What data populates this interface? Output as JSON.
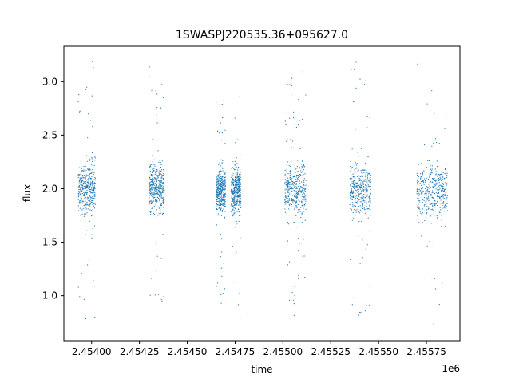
{
  "chart_data": {
    "type": "scatter",
    "title": "1SWASPJ220535.36+095627.0",
    "xlabel": "time",
    "ylabel": "flux",
    "x_offset_label": "1e6",
    "xlim": [
      2453855,
      2455925
    ],
    "ylim": [
      0.58,
      3.33
    ],
    "x_ticks": [
      2454000,
      2454250,
      2454500,
      2454750,
      2455000,
      2455250,
      2455500,
      2455750
    ],
    "x_tick_labels": [
      "2.45400",
      "2.45425",
      "2.45450",
      "2.45475",
      "2.45500",
      "2.45525",
      "2.45550",
      "2.45575"
    ],
    "y_ticks": [
      1.0,
      1.5,
      2.0,
      2.5,
      3.0
    ],
    "y_tick_labels": [
      "1.0",
      "1.5",
      "2.0",
      "2.5",
      "3.0"
    ],
    "grid": false,
    "legend": false,
    "point_color": "#1f77b4",
    "series": [
      {
        "values_summary": "dense vertical clusters of flux measurements (center ~2.0) at each observing season",
        "clusters": [
          {
            "x_start": 2453930,
            "x_end": 2454020,
            "y_center": 2.0,
            "y_min": 0.78,
            "y_max": 3.2
          },
          {
            "x_start": 2454300,
            "x_end": 2454380,
            "y_center": 2.0,
            "y_min": 0.9,
            "y_max": 3.15
          },
          {
            "x_start": 2454650,
            "x_end": 2454700,
            "y_center": 1.98,
            "y_min": 0.9,
            "y_max": 2.85
          },
          {
            "x_start": 2454730,
            "x_end": 2454780,
            "y_center": 1.98,
            "y_min": 0.73,
            "y_max": 2.88
          },
          {
            "x_start": 2455010,
            "x_end": 2455120,
            "y_center": 2.0,
            "y_min": 0.72,
            "y_max": 3.12
          },
          {
            "x_start": 2455350,
            "x_end": 2455460,
            "y_center": 2.0,
            "y_min": 0.7,
            "y_max": 3.22
          },
          {
            "x_start": 2455700,
            "x_end": 2455860,
            "y_center": 1.98,
            "y_min": 0.7,
            "y_max": 3.22
          }
        ]
      }
    ]
  }
}
